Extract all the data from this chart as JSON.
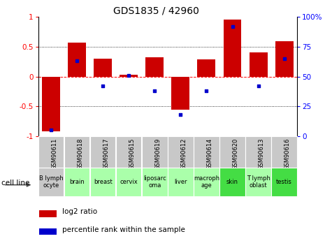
{
  "title": "GDS1835 / 42960",
  "gsm_labels": [
    "GSM90611",
    "GSM90618",
    "GSM90617",
    "GSM90615",
    "GSM90619",
    "GSM90612",
    "GSM90614",
    "GSM90620",
    "GSM90613",
    "GSM90616"
  ],
  "cell_lines": [
    "B lymph\nocyte",
    "brain",
    "breast",
    "cervix",
    "liposarc\noma",
    "liver",
    "macroph\nage",
    "skin",
    "T lymph\noblast",
    "testis"
  ],
  "cell_line_colors": [
    "#c8c8c8",
    "#aaffaa",
    "#aaffaa",
    "#aaffaa",
    "#aaffaa",
    "#aaffaa",
    "#aaffaa",
    "#44dd44",
    "#aaffaa",
    "#44dd44"
  ],
  "log2_ratio": [
    -0.92,
    0.57,
    0.3,
    0.03,
    0.32,
    -0.55,
    0.29,
    0.95,
    0.4,
    0.59
  ],
  "percentile_rank": [
    5,
    63,
    42,
    51,
    38,
    18,
    38,
    92,
    42,
    65
  ],
  "bar_color": "#cc0000",
  "dot_color": "#0000cc",
  "ylim_left": [
    -1,
    1
  ],
  "ylim_right": [
    0,
    100
  ],
  "yticks_left": [
    -1,
    -0.5,
    0,
    0.5,
    1
  ],
  "ytick_labels_left": [
    "-1",
    "-0.5",
    "0",
    "0.5",
    "1"
  ],
  "yticks_right": [
    0,
    25,
    50,
    75,
    100
  ],
  "ytick_labels_right": [
    "0",
    "25",
    "50",
    "75",
    "100%"
  ],
  "legend_log2": "log2 ratio",
  "legend_pct": "percentile rank within the sample",
  "cell_line_label": "cell line",
  "gsm_box_color": "#c8c8c8",
  "bar_width": 0.7
}
